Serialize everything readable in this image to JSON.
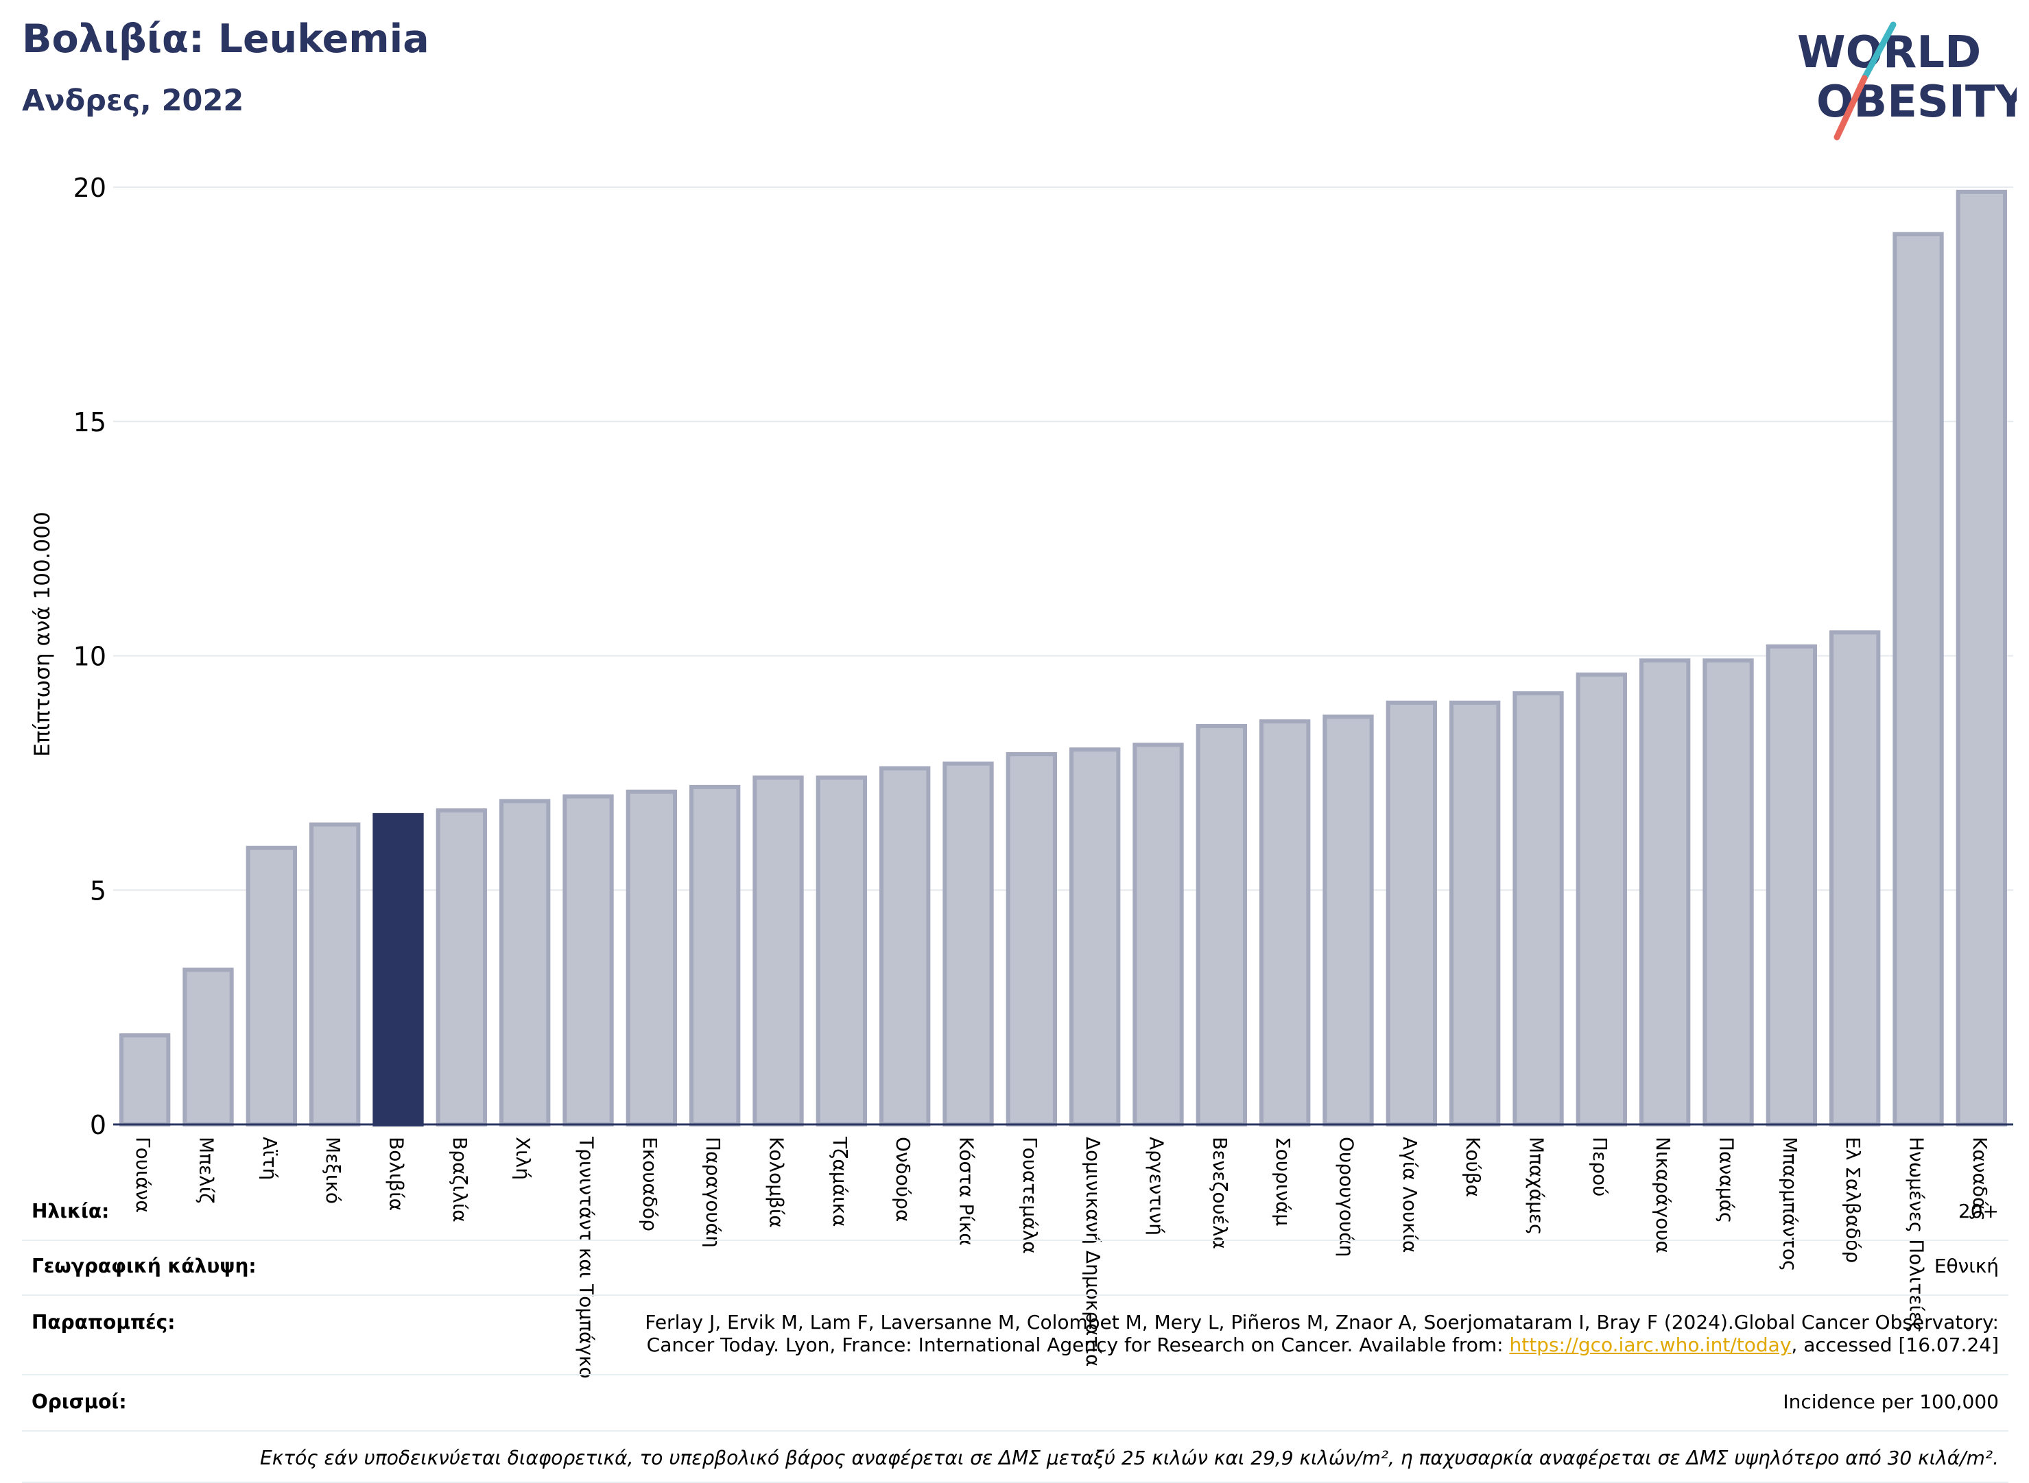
{
  "header": {
    "title": "Βολιβία: Leukemia",
    "subtitle": "Ανδρες, 2022"
  },
  "logo": {
    "line1": "WORLD",
    "line2": "OBESITY",
    "accent_teal": "#3fb6c4",
    "accent_red": "#e8675a",
    "brand_navy": "#2b3561"
  },
  "chart_data": {
    "type": "bar",
    "ylabel": "Επίπτωση ανά 100.000",
    "xlabel": "",
    "ylim": [
      0,
      20
    ],
    "yticks": [
      0,
      5,
      10,
      15,
      20
    ],
    "grid": true,
    "highlight": "Βολιβία",
    "highlight_color": "#2b3561",
    "bar_color": "#bfc2cf",
    "bar_edge_color": "#a5a9bd",
    "categories": [
      "Γουιάνα",
      "Μπελίζ",
      "Αϊτή",
      "Μεξικό",
      "Βολιβία",
      "Βραζιλία",
      "Χιλή",
      "Τρινιντάντ και Τομπάγκο",
      "Εκουαδόρ",
      "Παραγουάη",
      "Κολομβία",
      "Τζαμάικα",
      "Ονδούρα",
      "Κόστα Ρίκα",
      "Γουατεμάλα",
      "Δομινικανή Δημοκρατία",
      "Αργεντινή",
      "Βενεζουέλα",
      "Σουρινάμ",
      "Ουρουγουάη",
      "Αγία Λουκία",
      "Κούβα",
      "Μπαχάμες",
      "Περού",
      "Νικαράγουα",
      "Παναμάς",
      "Μπαρμπάντος",
      "Ελ Σαλβαδόρ",
      "Ηνωμένες Πολιτείες",
      "Καναδάς"
    ],
    "values": [
      1.9,
      3.3,
      5.9,
      6.4,
      6.6,
      6.7,
      6.9,
      7.0,
      7.1,
      7.2,
      7.4,
      7.4,
      7.6,
      7.7,
      7.9,
      8.0,
      8.1,
      8.5,
      8.6,
      8.7,
      9.0,
      9.0,
      9.2,
      9.6,
      9.9,
      9.9,
      10.2,
      10.5,
      19.0,
      19.9
    ]
  },
  "info": {
    "age_label": "Ηλικία:",
    "age_value": "20+",
    "geo_label": "Γεωγραφική κάλυψη:",
    "geo_value": "Εθνική",
    "ref_label": "Παραπομπές:",
    "ref_line1": "Ferlay J, Ervik M, Lam F, Laversanne M, Colombet M, Mery L, Piñeros M, Znaor A, Soerjomataram I, Bray F (2024).Global Cancer Observatory:",
    "ref_line2_pre": "Cancer Today. Lyon, France: International Agency for Research on Cancer. Available from: ",
    "ref_link": "https://gco.iarc.who.int/today",
    "ref_line2_post": ", accessed [16.07.24]",
    "def_label": "Ορισμοί:",
    "def_value": "Incidence per 100,000",
    "note": "Εκτός εάν υποδεικνύεται διαφορετικά, το υπερβολικό βάρος αναφέρεται σε ΔΜΣ μεταξύ 25 κιλών και 29,9 κιλών/m², η παχυσαρκία αναφέρεται σε ΔΜΣ υψηλότερο από 30 κιλά/m²."
  }
}
